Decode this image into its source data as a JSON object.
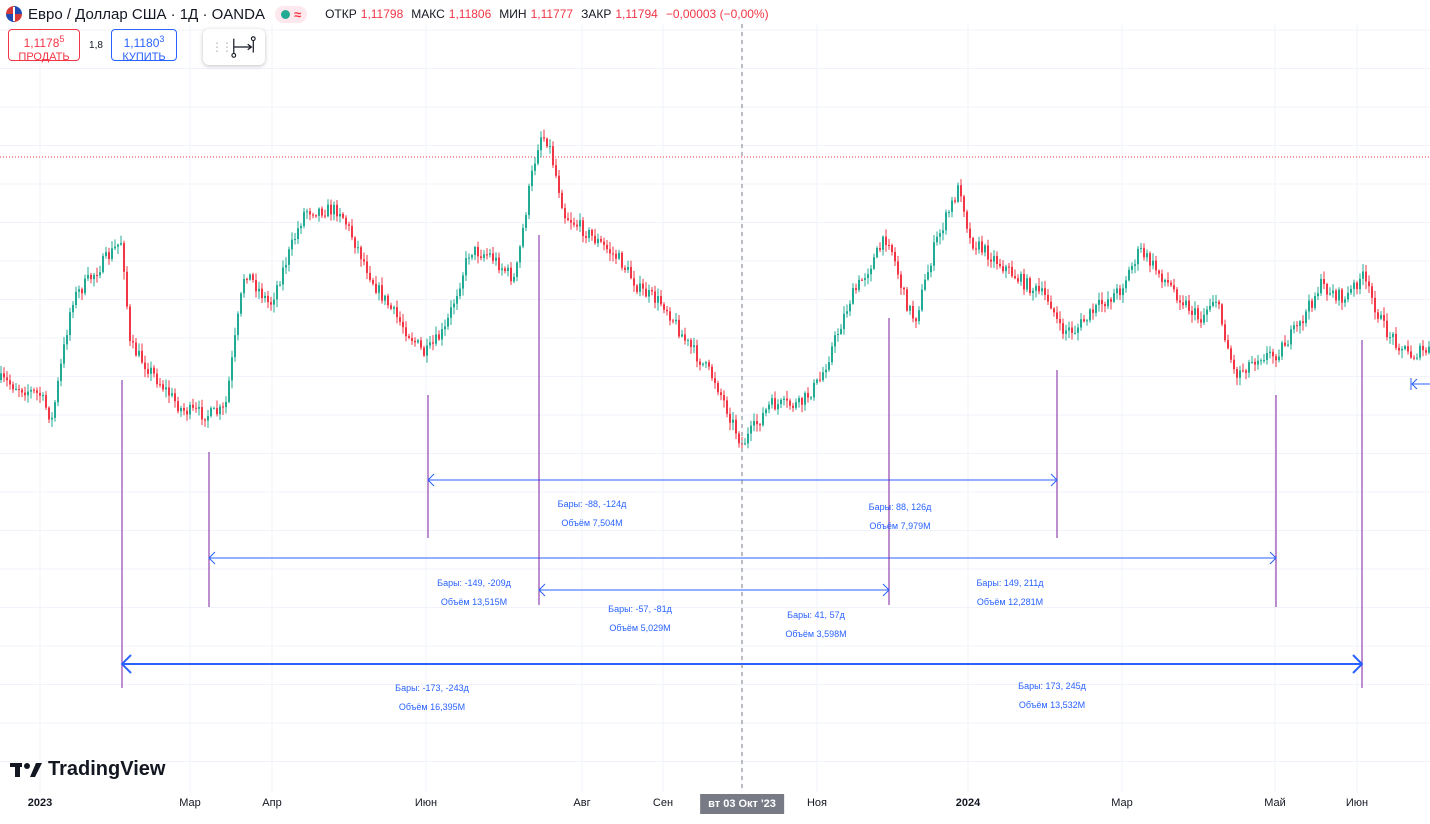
{
  "header": {
    "symbol_title": "Евро / Доллар США · 1Д · OANDA",
    "status_wave": "≈",
    "ohlc": [
      {
        "label": "ОТКР",
        "value": "1,11798"
      },
      {
        "label": "МАКС",
        "value": "1,11806"
      },
      {
        "label": "МИН",
        "value": "1,11777"
      },
      {
        "label": "ЗАКР",
        "value": "1,11794"
      }
    ],
    "change": "−0,00003 (−0,00%)"
  },
  "trade": {
    "sell_price_main": "1,1178",
    "sell_price_small": "5",
    "sell_label": "ПРОДАТЬ",
    "spread": "1,8",
    "buy_price_main": "1,1180",
    "buy_price_small": "3",
    "buy_label": "КУПИТЬ"
  },
  "toolbar": {
    "active_tool_icon": "date-range-icon",
    "grip_icon": "drag-handle-icon"
  },
  "brand": {
    "name": "TradingView"
  },
  "x_axis": {
    "ticks": [
      {
        "label": "2023",
        "bold": true
      },
      {
        "label": "Мар",
        "bold": false
      },
      {
        "label": "Апр",
        "bold": false
      },
      {
        "label": "Июн",
        "bold": false
      },
      {
        "label": "Авг",
        "bold": false
      },
      {
        "label": "Сен",
        "bold": false
      },
      {
        "label": "Ноя",
        "bold": false
      },
      {
        "label": "2024",
        "bold": true
      },
      {
        "label": "Мар",
        "bold": false
      },
      {
        "label": "Май",
        "bold": false
      },
      {
        "label": "Июн",
        "bold": false
      }
    ],
    "crosshair_date": "вт 03 Окт '23"
  },
  "measurements": [
    {
      "bars": "Бары: -88, -124д",
      "volume": "Объём 7,504M"
    },
    {
      "bars": "Бары: 88, 126д",
      "volume": "Объём 7,979M"
    },
    {
      "bars": "Бары: -149, -209д",
      "volume": "Объём 13,515M"
    },
    {
      "bars": "Бары: 149, 211д",
      "volume": "Объём 12,281M"
    },
    {
      "bars": "Бары: -57, -81д",
      "volume": "Объём 5,029M"
    },
    {
      "bars": "Бары: 41, 57д",
      "volume": "Объём 3,598M"
    },
    {
      "bars": "Бары: -173, -243д",
      "volume": "Объём 16,395M"
    },
    {
      "bars": "Бары: 173, 245д",
      "volume": "Объём 13,532M"
    }
  ],
  "colors": {
    "up": "#22ab94",
    "down": "#f23645",
    "drawing": "#2962ff",
    "marker": "#7b1fa2",
    "grid": "#f0f3fa"
  }
}
